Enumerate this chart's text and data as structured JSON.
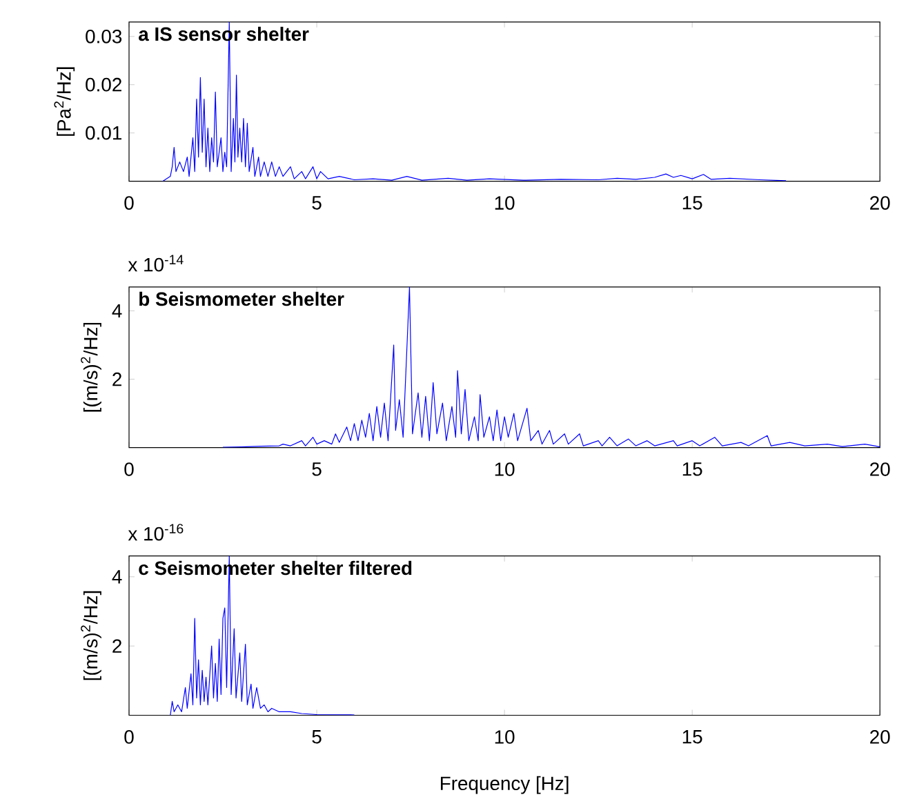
{
  "chart_data": [
    {
      "type": "line",
      "title": "**a  IS sensor shelter**",
      "ylabel": "[Pa$^{2}$/Hz]",
      "xlim": [
        0,
        20
      ],
      "xticks": [
        0,
        5,
        10,
        15,
        20
      ],
      "ylim": [
        0,
        0.033
      ],
      "yticks": [
        0.01,
        0.02,
        0.03
      ],
      "x": [
        0.9,
        1.0,
        1.1,
        1.15,
        1.2,
        1.25,
        1.35,
        1.45,
        1.55,
        1.6,
        1.7,
        1.75,
        1.8,
        1.85,
        1.9,
        1.95,
        2.0,
        2.05,
        2.1,
        2.15,
        2.2,
        2.25,
        2.3,
        2.35,
        2.45,
        2.5,
        2.55,
        2.6,
        2.67,
        2.72,
        2.78,
        2.82,
        2.86,
        2.9,
        2.95,
        3.0,
        3.05,
        3.1,
        3.15,
        3.2,
        3.3,
        3.35,
        3.45,
        3.5,
        3.6,
        3.7,
        3.8,
        3.9,
        4.0,
        4.1,
        4.3,
        4.4,
        4.6,
        4.7,
        4.9,
        5.0,
        5.1,
        5.3,
        5.6,
        6.0,
        6.5,
        7.0,
        7.4,
        7.8,
        8.5,
        9.0,
        9.6,
        10.5,
        11.5,
        12.5,
        13.0,
        13.5,
        14.0,
        14.3,
        14.5,
        14.7,
        15.0,
        15.3,
        15.5,
        16.0,
        16.8,
        17.5
      ],
      "series": [
        {
          "color": "#0000ff",
          "values": [
            0,
            0.0005,
            0.001,
            0.003,
            0.007,
            0.002,
            0.004,
            0.002,
            0.005,
            0.001,
            0.009,
            0.002,
            0.017,
            0.005,
            0.0215,
            0.006,
            0.017,
            0.003,
            0.011,
            0.002,
            0.009,
            0.004,
            0.0185,
            0.003,
            0.009,
            0.002,
            0.006,
            0.003,
            0.033,
            0.002,
            0.013,
            0.004,
            0.022,
            0.005,
            0.011,
            0.004,
            0.013,
            0.003,
            0.012,
            0.002,
            0.007,
            0.001,
            0.005,
            0.001,
            0.004,
            0.001,
            0.004,
            0.001,
            0.003,
            0.001,
            0.003,
            0.0005,
            0.002,
            0.0005,
            0.003,
            0.0005,
            0.002,
            0.0005,
            0.001,
            0.0003,
            0.0005,
            0.0002,
            0.001,
            0.0002,
            0.0006,
            0.0002,
            0.0005,
            0.0002,
            0.0004,
            0.0003,
            0.0006,
            0.0004,
            0.0008,
            0.0015,
            0.0008,
            0.0012,
            0.0005,
            0.0014,
            0.0004,
            0.0006,
            0.0003,
            0.0001
          ]
        }
      ]
    },
    {
      "type": "line",
      "title": "**b Seismometer shelter**",
      "ylabel": "[(m/s)$^{2}$/Hz]",
      "annotations": [
        "x 10$^{-14}$"
      ],
      "xlim": [
        0,
        20
      ],
      "xticks": [
        0,
        5,
        10,
        15,
        20
      ],
      "ylim": [
        0,
        4.7
      ],
      "yticks": [
        2,
        4
      ],
      "x": [
        2.5,
        3.0,
        3.5,
        4.0,
        4.1,
        4.3,
        4.6,
        4.7,
        4.9,
        5.0,
        5.2,
        5.4,
        5.5,
        5.6,
        5.8,
        5.9,
        6.0,
        6.1,
        6.2,
        6.3,
        6.4,
        6.5,
        6.6,
        6.7,
        6.8,
        6.9,
        7.05,
        7.1,
        7.2,
        7.3,
        7.47,
        7.55,
        7.7,
        7.8,
        7.9,
        8.0,
        8.1,
        8.2,
        8.35,
        8.45,
        8.6,
        8.7,
        8.75,
        8.85,
        8.95,
        9.05,
        9.2,
        9.3,
        9.35,
        9.45,
        9.6,
        9.7,
        9.8,
        9.9,
        10.0,
        10.1,
        10.25,
        10.35,
        10.6,
        10.7,
        10.9,
        11.0,
        11.2,
        11.3,
        11.6,
        11.7,
        12.0,
        12.1,
        12.5,
        12.6,
        12.8,
        13.0,
        13.3,
        13.5,
        13.8,
        14.0,
        14.5,
        14.6,
        15.0,
        15.2,
        15.6,
        15.8,
        16.3,
        16.5,
        17.0,
        17.1,
        17.6,
        18.0,
        18.6,
        19.0,
        19.6,
        20
      ],
      "series": [
        {
          "color": "#0000ff",
          "values": [
            0.01,
            0.02,
            0.04,
            0.05,
            0.1,
            0.05,
            0.2,
            0.05,
            0.3,
            0.1,
            0.2,
            0.1,
            0.4,
            0.15,
            0.6,
            0.2,
            0.7,
            0.2,
            0.8,
            0.3,
            1.0,
            0.2,
            1.2,
            0.3,
            1.3,
            0.2,
            3.0,
            0.5,
            1.4,
            0.3,
            4.7,
            0.4,
            1.6,
            0.3,
            1.5,
            0.2,
            1.9,
            0.4,
            1.3,
            0.2,
            1.2,
            0.3,
            2.25,
            0.4,
            1.7,
            0.2,
            0.9,
            0.2,
            1.55,
            0.3,
            0.9,
            0.2,
            1.1,
            0.2,
            0.9,
            0.3,
            1.0,
            0.2,
            1.15,
            0.2,
            0.5,
            0.1,
            0.5,
            0.1,
            0.4,
            0.1,
            0.4,
            0.05,
            0.2,
            0.05,
            0.3,
            0.05,
            0.25,
            0.05,
            0.2,
            0.05,
            0.2,
            0.05,
            0.2,
            0.05,
            0.3,
            0.05,
            0.15,
            0.05,
            0.35,
            0.05,
            0.15,
            0.05,
            0.1,
            0.03,
            0.1,
            0.02
          ]
        }
      ]
    },
    {
      "type": "line",
      "title": "**c Seismometer shelter filtered**",
      "ylabel": "[(m/s)$^{2}$/Hz]",
      "xlabel": "Frequency [Hz]",
      "annotations": [
        "x 10$^{-16}$"
      ],
      "xlim": [
        0,
        20
      ],
      "xticks": [
        0,
        5,
        10,
        15,
        20
      ],
      "ylim": [
        0,
        4.6
      ],
      "yticks": [
        2,
        4
      ],
      "x": [
        1.1,
        1.15,
        1.2,
        1.3,
        1.4,
        1.5,
        1.55,
        1.65,
        1.7,
        1.75,
        1.8,
        1.85,
        1.9,
        1.95,
        2.0,
        2.05,
        2.1,
        2.2,
        2.25,
        2.3,
        2.35,
        2.4,
        2.45,
        2.5,
        2.55,
        2.6,
        2.67,
        2.72,
        2.8,
        2.85,
        2.95,
        3.0,
        3.1,
        3.15,
        3.25,
        3.3,
        3.4,
        3.5,
        3.6,
        3.7,
        3.8,
        4.0,
        4.3,
        4.6,
        5.0,
        6.0
      ],
      "series": [
        {
          "color": "#0000ff",
          "values": [
            0,
            0.4,
            0.1,
            0.3,
            0.1,
            0.8,
            0.2,
            1.2,
            0.3,
            2.8,
            0.5,
            1.6,
            0.3,
            1.3,
            0.4,
            1.1,
            0.3,
            2.0,
            0.5,
            1.5,
            0.4,
            2.2,
            0.6,
            2.8,
            3.1,
            0.8,
            4.6,
            0.6,
            2.5,
            0.5,
            1.8,
            0.4,
            2.05,
            0.3,
            0.9,
            0.2,
            0.8,
            0.2,
            0.3,
            0.1,
            0.2,
            0.1,
            0.1,
            0.05,
            0.02,
            0.01
          ]
        }
      ]
    }
  ]
}
